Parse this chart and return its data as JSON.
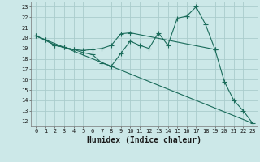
{
  "background_color": "#cce8e8",
  "grid_color": "#aacccc",
  "line_color": "#1a6b5a",
  "xlabel": "Humidex (Indice chaleur)",
  "xlim": [
    -0.5,
    23.5
  ],
  "ylim": [
    11.5,
    23.5
  ],
  "yticks": [
    12,
    13,
    14,
    15,
    16,
    17,
    18,
    19,
    20,
    21,
    22,
    23
  ],
  "xticks": [
    0,
    1,
    2,
    3,
    4,
    5,
    6,
    7,
    8,
    9,
    10,
    11,
    12,
    13,
    14,
    15,
    16,
    17,
    18,
    19,
    20,
    21,
    22,
    23
  ],
  "line1_x": [
    0,
    1,
    2,
    3,
    4,
    5,
    6,
    7,
    8,
    9,
    10,
    11,
    12,
    13,
    14,
    15,
    16,
    17,
    18,
    19,
    20,
    21,
    22,
    23
  ],
  "line1_y": [
    20.2,
    19.8,
    19.3,
    19.1,
    18.9,
    18.6,
    18.4,
    17.6,
    17.3,
    18.5,
    19.7,
    19.3,
    19.0,
    20.5,
    19.3,
    21.9,
    22.1,
    23.0,
    21.3,
    18.9,
    15.8,
    14.0,
    13.0,
    11.8
  ],
  "line2_x": [
    0,
    1,
    2,
    3,
    4,
    5,
    6,
    7,
    8,
    9,
    10,
    19
  ],
  "line2_y": [
    20.2,
    19.8,
    19.3,
    19.1,
    18.9,
    18.8,
    18.9,
    19.0,
    19.3,
    20.4,
    20.5,
    18.9
  ],
  "line3_x": [
    0,
    23
  ],
  "line3_y": [
    20.2,
    11.8
  ],
  "title_fontsize": 7,
  "tick_fontsize": 5,
  "xlabel_fontsize": 7
}
